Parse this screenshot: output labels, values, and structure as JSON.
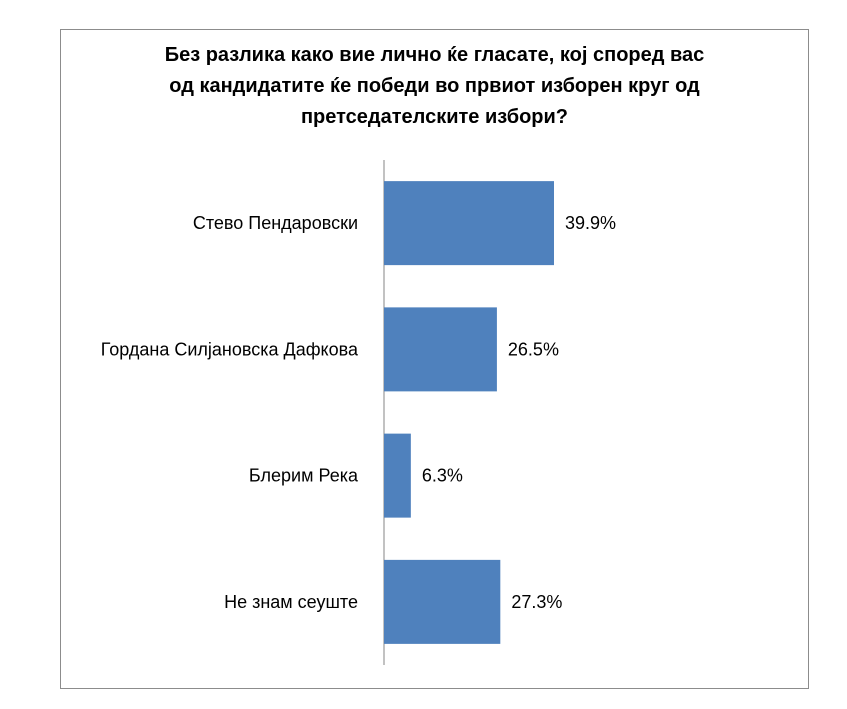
{
  "chart_data": {
    "type": "bar",
    "orientation": "horizontal",
    "title": "Без разлика како вие лично ќе гласате, кој според вас од кандидатите ќе победи во првиот изборен круг од претседателските избори?",
    "title_lines": [
      "Без разлика како вие лично ќе гласате, кој според вас",
      "од кандидатите ќе победи во првиот изборен круг од",
      "претседателските избори?"
    ],
    "categories": [
      "Стево Пендаровски",
      "Гордана Силјановска Дафкова",
      "Блерим Река",
      "Не знам сеуште"
    ],
    "values": [
      39.9,
      26.5,
      6.3,
      27.3
    ],
    "data_labels": [
      "39.9%",
      "26.5%",
      "6.3%",
      "27.3%"
    ],
    "xlabel": "",
    "ylabel": "",
    "xlim": [
      0,
      100
    ],
    "grid": false,
    "legend": "none",
    "colors": {
      "bar": "#4f81bd",
      "axis": "#868686",
      "frame": "#8c8c8c",
      "text": "#000000"
    }
  }
}
